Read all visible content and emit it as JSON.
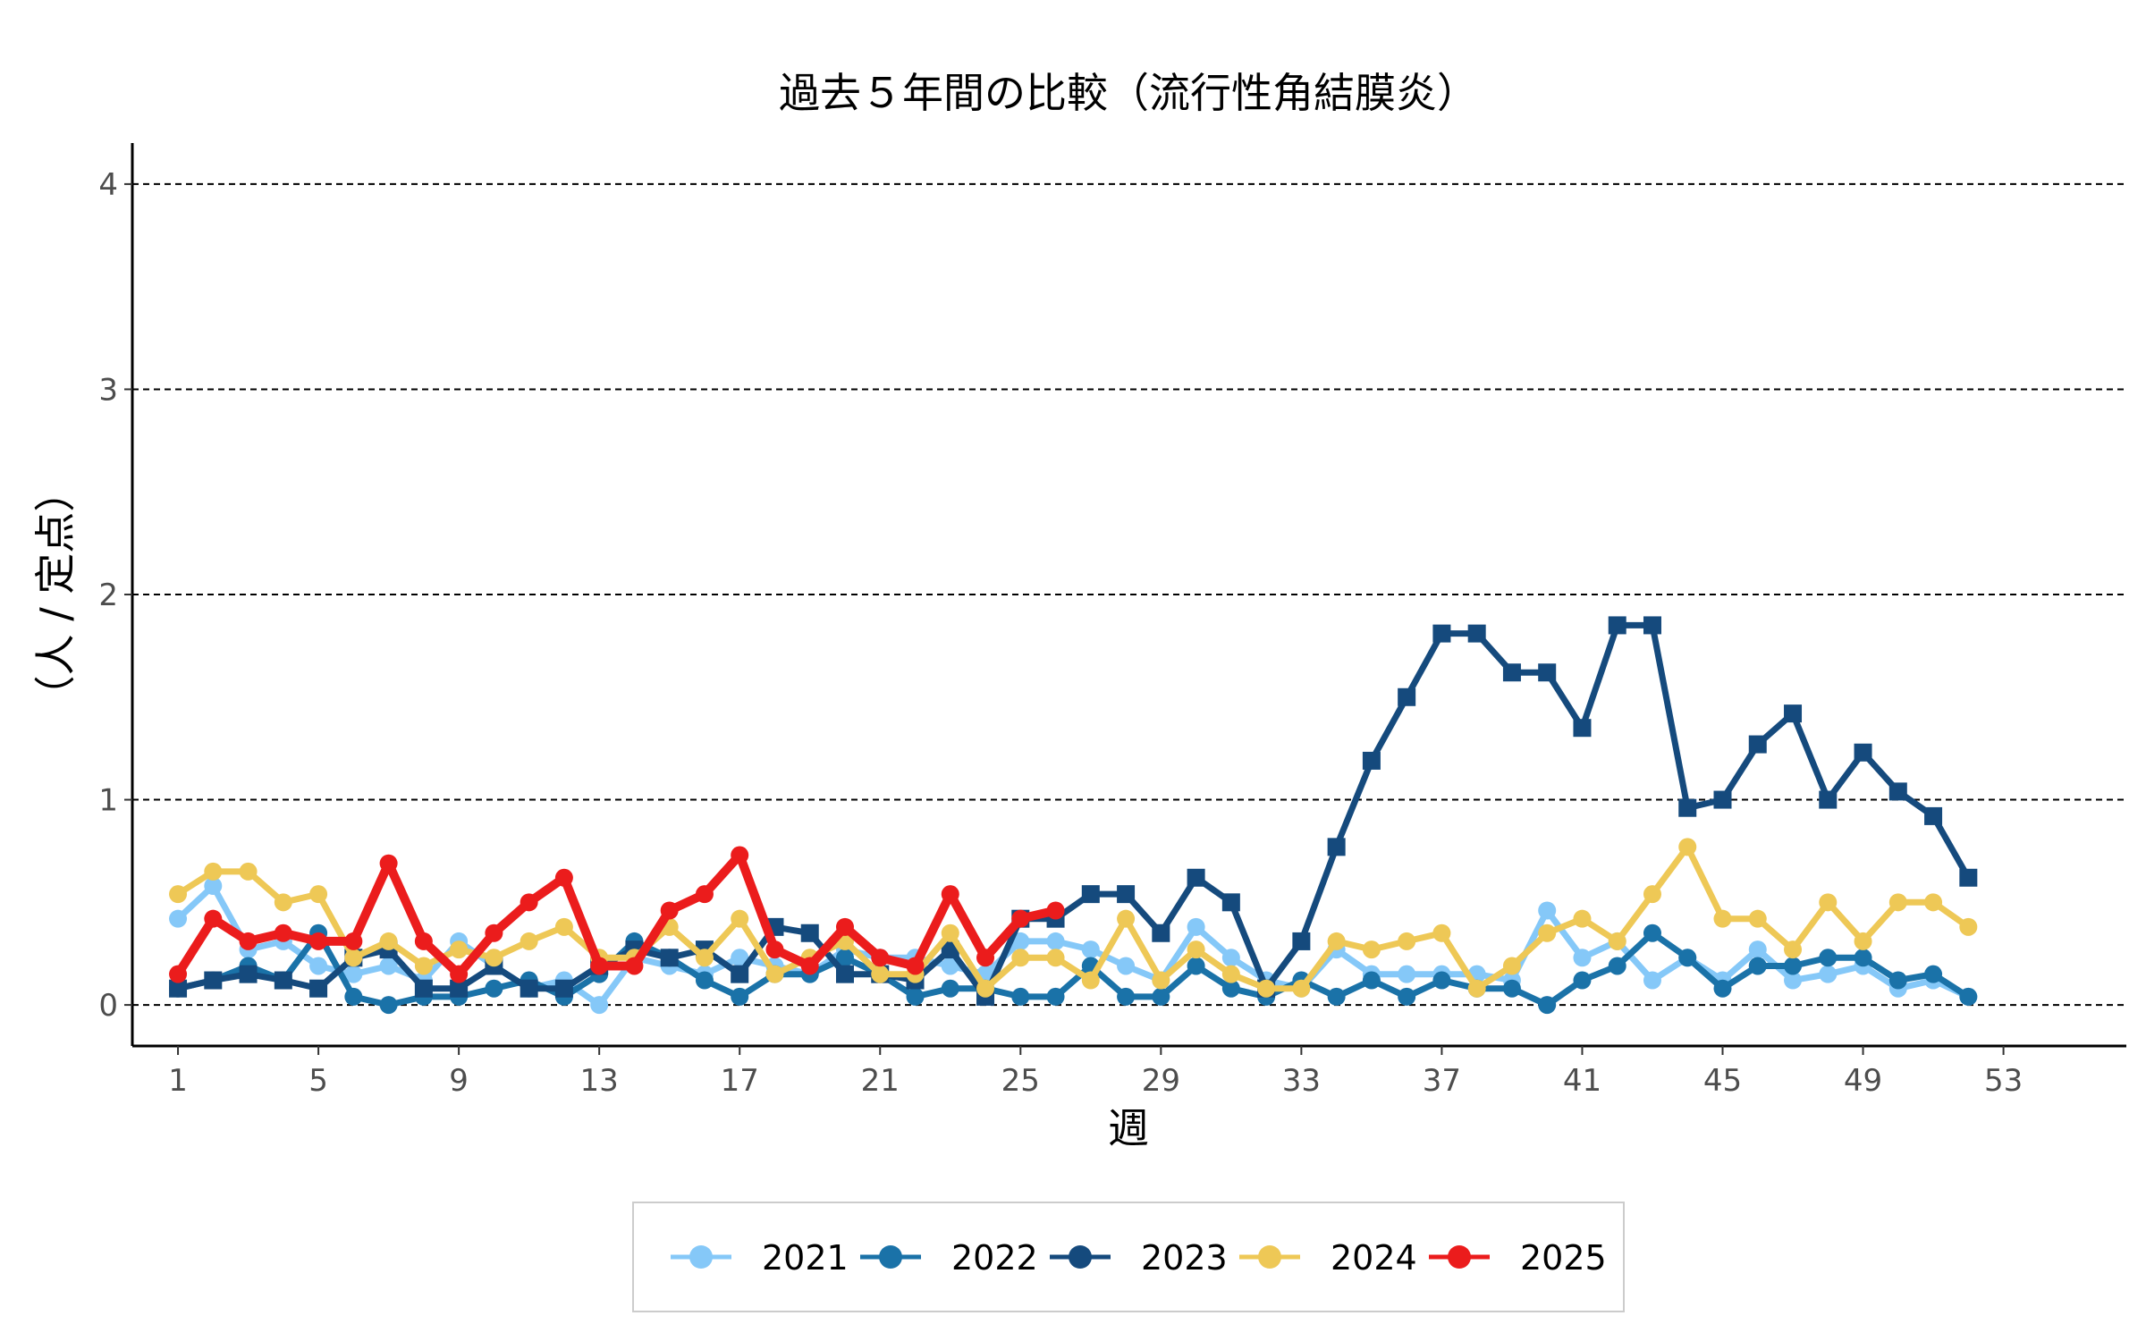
{
  "chart_data": {
    "type": "line",
    "title": "過去５年間の比較（流行性角結膜炎）",
    "xlabel": "週",
    "ylabel": "（人 / 定点）",
    "xlim": [
      -0.3,
      56.5
    ],
    "ylim": [
      -0.2,
      4.2
    ],
    "x_ticks": [
      1,
      5,
      9,
      13,
      17,
      21,
      25,
      29,
      33,
      37,
      41,
      45,
      49,
      53
    ],
    "x_tick_labels": [
      "1",
      "5",
      "9",
      "13",
      "17",
      "21",
      "25",
      "29",
      "33",
      "37",
      "41",
      "45",
      "49",
      "53"
    ],
    "y_ticks": [
      0,
      1,
      2,
      3,
      4
    ],
    "y_tick_labels": [
      "0",
      "1",
      "2",
      "3",
      "4"
    ],
    "grid": "horizontal dashed",
    "legend_position": "bottom",
    "series": [
      {
        "name": "2021",
        "color": "#85c8f8",
        "marker": "circle",
        "x": [
          1,
          2,
          3,
          4,
          5,
          6,
          7,
          8,
          9,
          10,
          11,
          12,
          13,
          14,
          15,
          16,
          17,
          18,
          19,
          20,
          21,
          22,
          23,
          24,
          25,
          26,
          27,
          28,
          29,
          30,
          31,
          32,
          33,
          34,
          35,
          36,
          37,
          38,
          39,
          40,
          41,
          42,
          43,
          44,
          45,
          46,
          47,
          48,
          49,
          50,
          51,
          52
        ],
        "values": [
          0.42,
          0.58,
          0.27,
          0.31,
          0.19,
          0.15,
          0.19,
          0.12,
          0.31,
          0.19,
          0.08,
          0.12,
          0.0,
          0.23,
          0.19,
          0.15,
          0.23,
          0.19,
          0.15,
          0.27,
          0.23,
          0.23,
          0.19,
          0.15,
          0.31,
          0.31,
          0.27,
          0.19,
          0.12,
          0.38,
          0.23,
          0.12,
          0.08,
          0.27,
          0.15,
          0.15,
          0.15,
          0.15,
          0.12,
          0.46,
          0.23,
          0.31,
          0.12,
          0.23,
          0.12,
          0.27,
          0.12,
          0.15,
          0.19,
          0.08,
          0.12,
          0.04
        ]
      },
      {
        "name": "2022",
        "color": "#1a72a8",
        "marker": "circle",
        "x": [
          1,
          2,
          3,
          4,
          5,
          6,
          7,
          8,
          9,
          10,
          11,
          12,
          13,
          14,
          15,
          16,
          17,
          18,
          19,
          20,
          21,
          22,
          23,
          24,
          25,
          26,
          27,
          28,
          29,
          30,
          31,
          32,
          33,
          34,
          35,
          36,
          37,
          38,
          39,
          40,
          41,
          42,
          43,
          44,
          45,
          46,
          47,
          48,
          49,
          50,
          51,
          52
        ],
        "values": [
          0.08,
          0.12,
          0.19,
          0.12,
          0.35,
          0.04,
          0.0,
          0.04,
          0.04,
          0.08,
          0.12,
          0.04,
          0.15,
          0.31,
          0.23,
          0.12,
          0.04,
          0.15,
          0.15,
          0.23,
          0.15,
          0.04,
          0.08,
          0.08,
          0.04,
          0.04,
          0.19,
          0.04,
          0.04,
          0.19,
          0.08,
          0.04,
          0.12,
          0.04,
          0.12,
          0.04,
          0.12,
          0.08,
          0.08,
          0.0,
          0.12,
          0.19,
          0.35,
          0.23,
          0.08,
          0.19,
          0.19,
          0.23,
          0.23,
          0.12,
          0.15,
          0.04
        ]
      },
      {
        "name": "2023",
        "color": "#154a7d",
        "marker": "square",
        "x": [
          1,
          2,
          3,
          4,
          5,
          6,
          7,
          8,
          9,
          10,
          11,
          12,
          13,
          14,
          15,
          16,
          17,
          18,
          19,
          20,
          21,
          22,
          23,
          24,
          25,
          26,
          27,
          28,
          29,
          30,
          31,
          32,
          33,
          34,
          35,
          36,
          37,
          38,
          39,
          40,
          41,
          42,
          43,
          44,
          45,
          46,
          47,
          48,
          49,
          50,
          51,
          52
        ],
        "values": [
          0.08,
          0.12,
          0.15,
          0.12,
          0.08,
          0.23,
          0.27,
          0.08,
          0.08,
          0.19,
          0.08,
          0.08,
          0.19,
          0.27,
          0.23,
          0.27,
          0.15,
          0.38,
          0.35,
          0.15,
          0.15,
          0.12,
          0.27,
          0.04,
          0.42,
          0.42,
          0.54,
          0.54,
          0.35,
          0.62,
          0.5,
          0.08,
          0.31,
          0.77,
          1.19,
          1.5,
          1.81,
          1.81,
          1.62,
          1.62,
          1.35,
          1.85,
          1.85,
          0.96,
          1.0,
          1.27,
          1.42,
          1.0,
          1.23,
          1.04,
          0.92,
          0.62
        ]
      },
      {
        "name": "2024",
        "color": "#eec856",
        "marker": "circle",
        "x": [
          1,
          2,
          3,
          4,
          5,
          6,
          7,
          8,
          9,
          10,
          11,
          12,
          13,
          14,
          15,
          16,
          17,
          18,
          19,
          20,
          21,
          22,
          23,
          24,
          25,
          26,
          27,
          28,
          29,
          30,
          31,
          32,
          33,
          34,
          35,
          36,
          37,
          38,
          39,
          40,
          41,
          42,
          43,
          44,
          45,
          46,
          47,
          48,
          49,
          50,
          51,
          52
        ],
        "values": [
          0.54,
          0.65,
          0.65,
          0.5,
          0.54,
          0.23,
          0.31,
          0.19,
          0.27,
          0.23,
          0.31,
          0.38,
          0.23,
          0.23,
          0.38,
          0.23,
          0.42,
          0.15,
          0.23,
          0.31,
          0.15,
          0.15,
          0.35,
          0.08,
          0.23,
          0.23,
          0.12,
          0.42,
          0.12,
          0.27,
          0.15,
          0.08,
          0.08,
          0.31,
          0.27,
          0.31,
          0.35,
          0.08,
          0.19,
          0.35,
          0.42,
          0.31,
          0.54,
          0.77,
          0.42,
          0.42,
          0.27,
          0.5,
          0.31,
          0.5,
          0.5,
          0.38
        ]
      },
      {
        "name": "2025",
        "color": "#eb1c1c",
        "marker": "circle",
        "x": [
          1,
          2,
          3,
          4,
          5,
          6,
          7,
          8,
          9,
          10,
          11,
          12,
          13,
          14,
          15,
          16,
          17,
          18,
          19,
          20,
          21,
          22,
          23,
          24,
          25,
          26
        ],
        "values": [
          0.15,
          0.42,
          0.31,
          0.35,
          0.31,
          0.31,
          0.69,
          0.31,
          0.15,
          0.35,
          0.5,
          0.62,
          0.19,
          0.19,
          0.46,
          0.54,
          0.73,
          0.27,
          0.19,
          0.38,
          0.23,
          0.19,
          0.54,
          0.23,
          0.42,
          0.46
        ]
      }
    ]
  }
}
